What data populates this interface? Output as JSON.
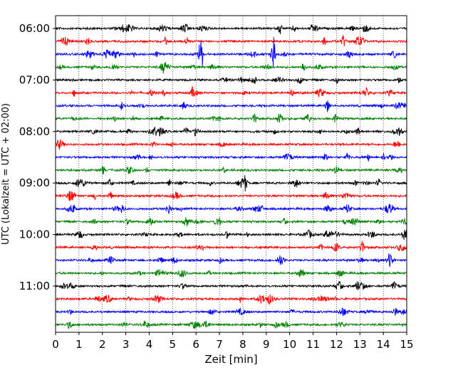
{
  "chart_data": {
    "type": "line",
    "title": "",
    "xlabel": "Zeit  [min]",
    "ylabel": "UTC (Lokalzeit = UTC + 02:00)",
    "xlim": [
      0,
      15
    ],
    "x_ticks": [
      "0",
      "1",
      "2",
      "3",
      "4",
      "5",
      "6",
      "7",
      "8",
      "9",
      "10",
      "11",
      "12",
      "13",
      "14",
      "15"
    ],
    "y_ticks": [
      {
        "label": "06:00",
        "trace": 0
      },
      {
        "label": "07:00",
        "trace": 4
      },
      {
        "label": "08:00",
        "trace": 8
      },
      {
        "label": "09:00",
        "trace": 12
      },
      {
        "label": "10:00",
        "trace": 16
      },
      {
        "label": "11:00",
        "trace": 20
      }
    ],
    "grid": "vertical dotted at each minute",
    "trace_interval_min": 15,
    "trace_colors": [
      "#000000",
      "#ff0000",
      "#0000ff",
      "#007f00"
    ],
    "trace_start_times": [
      "06:00",
      "06:15",
      "06:30",
      "06:45",
      "07:00",
      "07:15",
      "07:30",
      "07:45",
      "08:00",
      "08:15",
      "08:30",
      "08:45",
      "09:00",
      "09:15",
      "09:30",
      "09:45",
      "10:00",
      "10:15",
      "10:30",
      "10:45",
      "11:00",
      "11:15",
      "11:30",
      "11:45"
    ],
    "notable_events": [
      {
        "trace": 2,
        "x": 6.2,
        "relative_amplitude": 1.0
      },
      {
        "trace": 2,
        "x": 9.3,
        "relative_amplitude": 1.0
      },
      {
        "trace": 0,
        "x": 9.6,
        "relative_amplitude": 0.3
      },
      {
        "trace": 1,
        "x": 5.6,
        "relative_amplitude": 0.3
      },
      {
        "trace": 1,
        "x": 12.3,
        "relative_amplitude": 0.3
      },
      {
        "trace": 3,
        "x": 10.6,
        "relative_amplitude": 0.3
      },
      {
        "trace": 6,
        "x": 11.6,
        "relative_amplitude": 0.35
      },
      {
        "trace": 7,
        "x": 8.5,
        "relative_amplitude": 0.3
      },
      {
        "trace": 8,
        "x": 6.0,
        "relative_amplitude": 0.3
      },
      {
        "trace": 12,
        "x": 8.1,
        "relative_amplitude": 0.35
      },
      {
        "trace": 17,
        "x": 13.1,
        "relative_amplitude": 0.4
      },
      {
        "trace": 18,
        "x": 14.3,
        "relative_amplitude": 0.45
      }
    ]
  }
}
